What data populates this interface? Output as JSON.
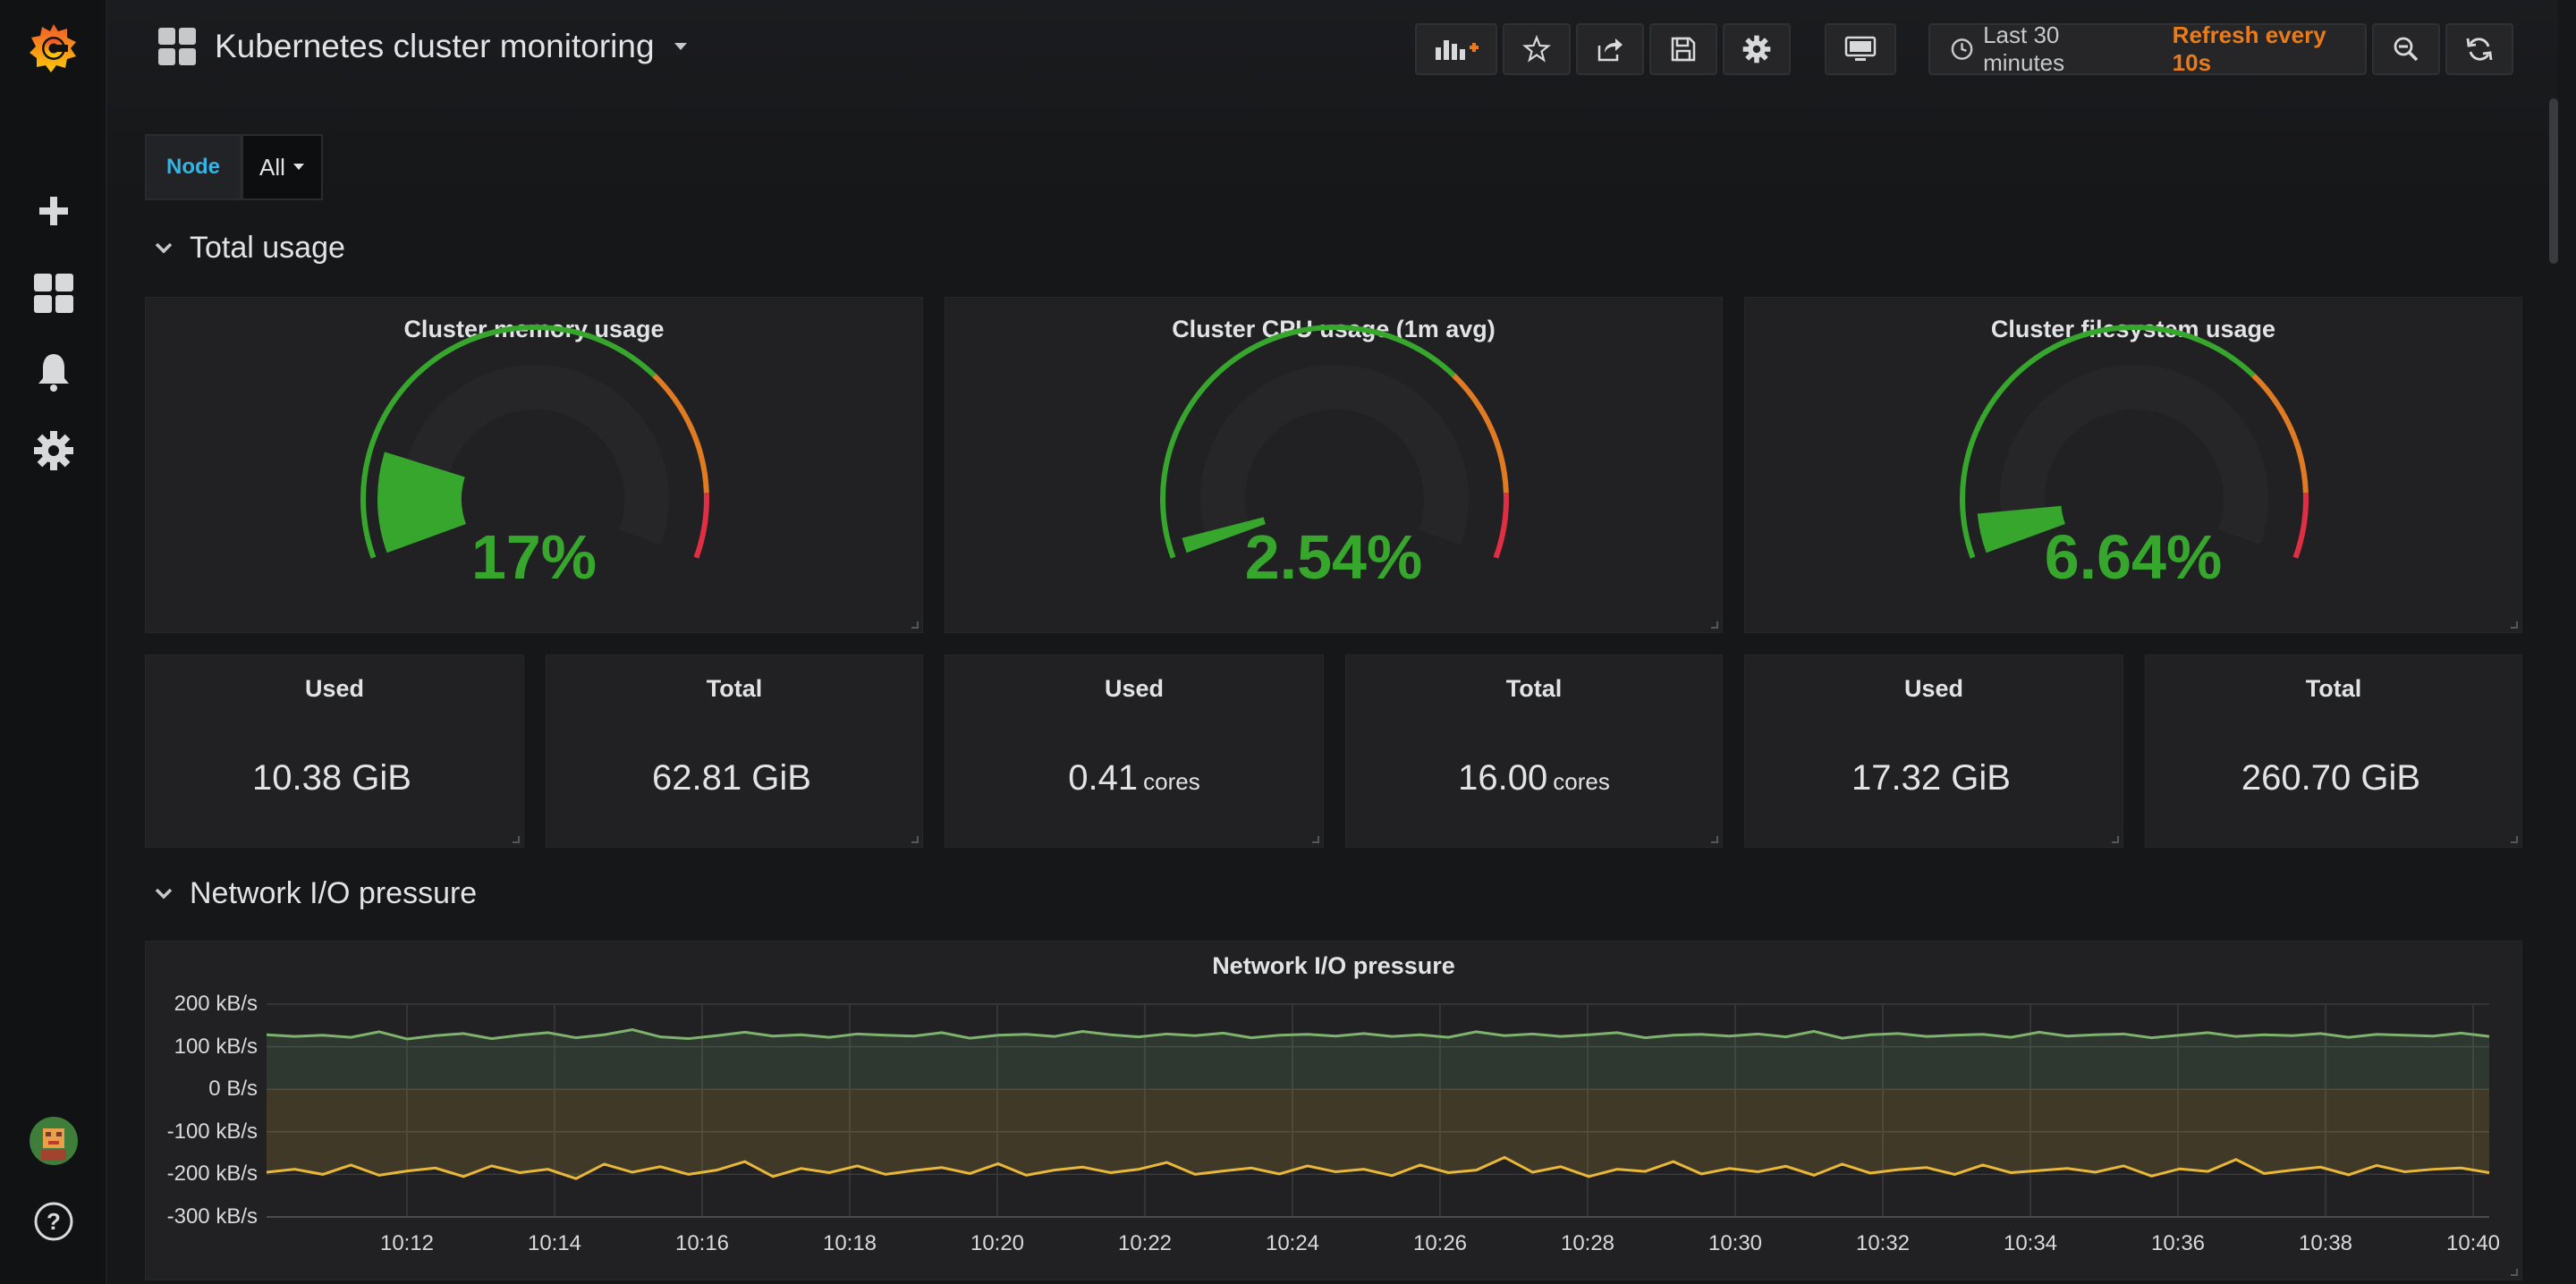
{
  "dashboard": {
    "title": "Kubernetes cluster monitoring",
    "time_range": "Last 30 minutes",
    "refresh": "Refresh every 10s"
  },
  "variables": {
    "node_label": "Node",
    "node_value": "All"
  },
  "rows": {
    "total_usage": "Total usage",
    "network": "Network I/O pressure"
  },
  "gauges": [
    {
      "title": "Cluster memory usage",
      "value": "17%",
      "percent": 17
    },
    {
      "title": "Cluster CPU usage (1m avg)",
      "value": "2.54%",
      "percent": 2.54
    },
    {
      "title": "Cluster filesystem usage",
      "value": "6.64%",
      "percent": 6.64
    }
  ],
  "stats": [
    {
      "title": "Used",
      "value": "10.38 GiB",
      "unit": ""
    },
    {
      "title": "Total",
      "value": "62.81 GiB",
      "unit": ""
    },
    {
      "title": "Used",
      "value": "0.41",
      "unit": "cores"
    },
    {
      "title": "Total",
      "value": "16.00",
      "unit": "cores"
    },
    {
      "title": "Used",
      "value": "17.32 GiB",
      "unit": ""
    },
    {
      "title": "Total",
      "value": "260.70 GiB",
      "unit": ""
    }
  ],
  "colors": {
    "ok": "#37a62d",
    "warn": "#e07b24",
    "crit": "#e02f44",
    "refresh": "#eb7b18",
    "var_label": "#33b5e5",
    "series_in": "#7eb26d",
    "series_out": "#eab839"
  },
  "chart_data": {
    "type": "line",
    "title": "Network I/O pressure",
    "y_ticks": [
      "200 kB/s",
      "100 kB/s",
      "0 B/s",
      "-100 kB/s",
      "-200 kB/s",
      "-300 kB/s"
    ],
    "ylim": [
      -300,
      200
    ],
    "x_ticks": [
      "10:12",
      "10:14",
      "10:16",
      "10:18",
      "10:20",
      "10:22",
      "10:24",
      "10:26",
      "10:28",
      "10:30",
      "10:32",
      "10:34",
      "10:36",
      "10:38",
      "10:40"
    ],
    "grid": true,
    "series": [
      {
        "color": "#7eb26d",
        "values": [
          128,
          124,
          127,
          122,
          135,
          118,
          126,
          131,
          119,
          127,
          133,
          121,
          128,
          140,
          123,
          119,
          126,
          134,
          125,
          128,
          122,
          130,
          127,
          125,
          133,
          120,
          127,
          129,
          124,
          136,
          128,
          123,
          130,
          126,
          132,
          121,
          127,
          129,
          125,
          131,
          124,
          128,
          122,
          135,
          126,
          130,
          124,
          128,
          133,
          121,
          127,
          129,
          125,
          130,
          123,
          136,
          120,
          128,
          131,
          124,
          127,
          129,
          122,
          134,
          125,
          128,
          130,
          121,
          127,
          133,
          124,
          128,
          126,
          131,
          122,
          129,
          127,
          125,
          132,
          124
        ]
      },
      {
        "color": "#eab839",
        "values": [
          -195,
          -188,
          -200,
          -178,
          -202,
          -192,
          -185,
          -205,
          -180,
          -196,
          -188,
          -210,
          -176,
          -195,
          -182,
          -200,
          -190,
          -170,
          -205,
          -186,
          -196,
          -180,
          -200,
          -191,
          -184,
          -198,
          -175,
          -202,
          -190,
          -183,
          -196,
          -188,
          -172,
          -200,
          -192,
          -185,
          -199,
          -180,
          -194,
          -188,
          -203,
          -178,
          -196,
          -190,
          -160,
          -195,
          -182,
          -205,
          -188,
          -193,
          -170,
          -199,
          -186,
          -194,
          -181,
          -202,
          -176,
          -197,
          -189,
          -184,
          -200,
          -178,
          -196,
          -191,
          -186,
          -195,
          -180,
          -204,
          -187,
          -193,
          -165,
          -198,
          -190,
          -183,
          -201,
          -179,
          -194,
          -188,
          -185,
          -196
        ]
      }
    ]
  }
}
